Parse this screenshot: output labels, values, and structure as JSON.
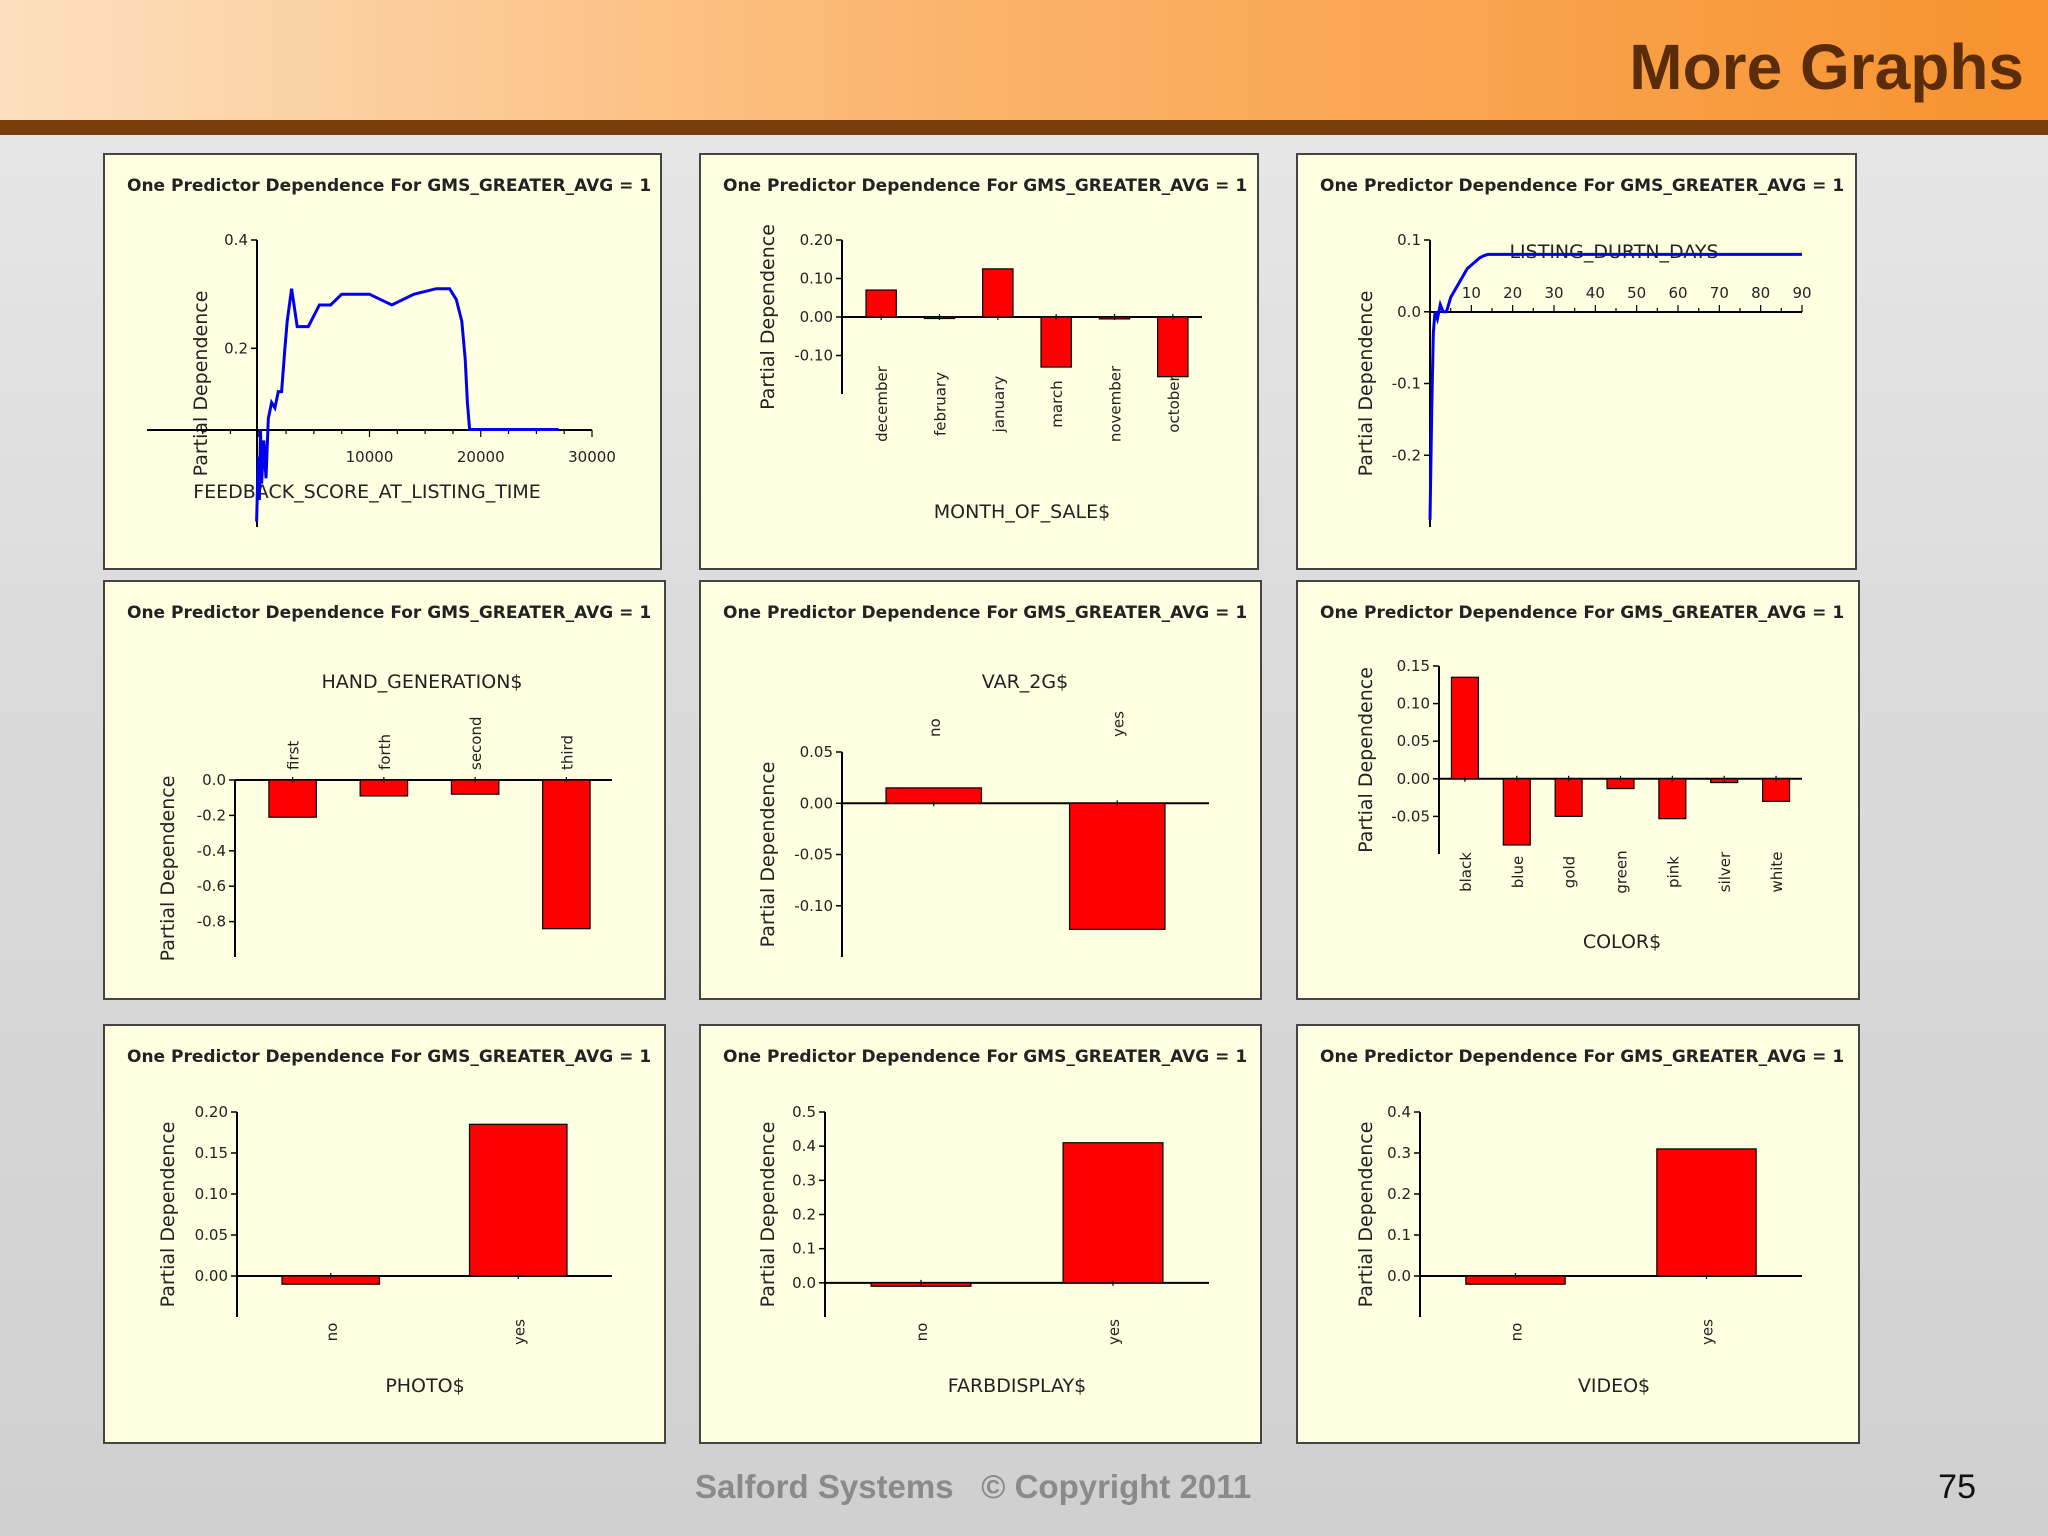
{
  "slide": {
    "title": "More Graphs",
    "footer": "Salford Systems   © Copyright 2011",
    "page_number": "75"
  },
  "colors": {
    "bar": "#ff0000",
    "line": "#0000ee",
    "panel_bg": "#ffffe1",
    "header_dark": "#7a3d0c"
  },
  "chart_data": [
    {
      "type": "line",
      "title": "One Predictor Dependence For GMS_GREATER_AVG = 1",
      "xlabel": "FEEDBACK_SCORE_AT_LISTING_TIME",
      "ylabel": "Partial Dependence",
      "xticks": [
        10000,
        20000,
        30000
      ],
      "xtick_labels": [
        "10000",
        "20000",
        "30000"
      ],
      "yticks": [
        0.2,
        0.4
      ],
      "ytick_labels": [
        "0.2",
        "0.4"
      ],
      "xlim": [
        -10000,
        30000
      ],
      "ylim": [
        -0.13,
        0.4
      ],
      "x": [
        -150,
        0,
        100,
        200,
        300,
        500,
        700,
        900,
        1200,
        1500,
        1800,
        2100,
        2400,
        2600,
        2800,
        3000,
        3500,
        4500,
        5500,
        6500,
        7500,
        8500,
        10000,
        12000,
        14000,
        16000,
        17200,
        17800,
        18300,
        18600,
        18800,
        19000,
        19200,
        27000
      ],
      "y": [
        -0.12,
        0.0,
        -0.08,
        0.05,
        -0.05,
        0.03,
        -0.04,
        0.07,
        0.1,
        0.09,
        0.12,
        0.12,
        0.2,
        0.25,
        0.28,
        0.31,
        0.24,
        0.24,
        0.28,
        0.28,
        0.3,
        0.3,
        0.3,
        0.28,
        0.3,
        0.31,
        0.31,
        0.29,
        0.25,
        0.18,
        0.1,
        0.05,
        0.05,
        0.05
      ]
    },
    {
      "type": "bar",
      "title": "One Predictor Dependence For GMS_GREATER_AVG = 1",
      "xlabel": "MONTH_OF_SALE$",
      "ylabel": "Partial Dependence",
      "categories": [
        "december",
        "february",
        "january",
        "march",
        "november",
        "october"
      ],
      "values": [
        0.07,
        0.0,
        0.125,
        -0.13,
        -0.005,
        -0.155
      ],
      "yticks": [
        -0.1,
        0.0,
        0.1,
        0.2
      ],
      "ytick_labels": [
        "-0.10",
        "0.00",
        "0.10",
        "0.20"
      ],
      "ylim": [
        -0.2,
        0.2
      ],
      "xtick_position": "bottom"
    },
    {
      "type": "line",
      "title": "One Predictor Dependence For GMS_GREATER_AVG = 1",
      "xlabel": "LISTING_DURTN_DAYS",
      "ylabel": "Partial Dependence",
      "xticks": [
        10,
        20,
        30,
        40,
        50,
        60,
        70,
        80,
        90
      ],
      "xtick_labels": [
        "10",
        "20",
        "30",
        "40",
        "50",
        "60",
        "70",
        "80",
        "90"
      ],
      "yticks": [
        -0.2,
        -0.1,
        0.0,
        0.1
      ],
      "ytick_labels": [
        "-0.2",
        "-0.1",
        "0.0",
        "0.1"
      ],
      "xlim": [
        0,
        90
      ],
      "ylim": [
        -0.3,
        0.1
      ],
      "x": [
        0,
        0.4,
        0.8,
        1.2,
        1.8,
        2.5,
        3.2,
        4,
        5,
        6,
        7,
        8,
        9,
        10,
        11,
        12,
        13,
        14,
        15,
        90
      ],
      "y": [
        -0.29,
        -0.14,
        -0.03,
        0.0,
        -0.01,
        0.01,
        0.0,
        0.0,
        0.02,
        0.03,
        0.04,
        0.05,
        0.06,
        0.065,
        0.07,
        0.075,
        0.078,
        0.08,
        0.08,
        0.08
      ]
    },
    {
      "type": "bar",
      "title": "One Predictor Dependence For GMS_GREATER_AVG = 1",
      "xlabel": "HAND_GENERATION$",
      "ylabel": "Partial Dependence",
      "categories": [
        "first",
        "forth",
        "second",
        "third"
      ],
      "values": [
        -0.21,
        -0.09,
        -0.08,
        -0.84
      ],
      "yticks": [
        -0.8,
        -0.6,
        -0.4,
        -0.2,
        0.0
      ],
      "ytick_labels": [
        "-0.8",
        "-0.6",
        "-0.4",
        "-0.2",
        "0.0"
      ],
      "ylim": [
        -1.0,
        0.0
      ],
      "xtick_position": "top"
    },
    {
      "type": "bar",
      "title": "One Predictor Dependence For GMS_GREATER_AVG = 1",
      "xlabel": "VAR_2G$",
      "ylabel": "Partial Dependence",
      "categories": [
        "no",
        "yes"
      ],
      "values": [
        0.015,
        -0.123
      ],
      "yticks": [
        -0.1,
        -0.05,
        0.0,
        0.05
      ],
      "ytick_labels": [
        "-0.10",
        "-0.05",
        "0.00",
        "0.05"
      ],
      "ylim": [
        -0.15,
        0.05
      ],
      "xtick_position": "top"
    },
    {
      "type": "bar",
      "title": "One Predictor Dependence For GMS_GREATER_AVG = 1",
      "xlabel": "COLOR$",
      "ylabel": "Partial Dependence",
      "categories": [
        "black",
        "blue",
        "gold",
        "green",
        "pink",
        "silver",
        "white"
      ],
      "values": [
        0.135,
        -0.088,
        -0.05,
        -0.013,
        -0.053,
        -0.005,
        -0.03
      ],
      "yticks": [
        -0.05,
        0.0,
        0.05,
        0.1,
        0.15
      ],
      "ytick_labels": [
        "-0.05",
        "0.00",
        "0.05",
        "0.10",
        "0.15"
      ],
      "ylim": [
        -0.1,
        0.15
      ],
      "xtick_position": "bottom"
    },
    {
      "type": "bar",
      "title": "One Predictor Dependence For GMS_GREATER_AVG = 1",
      "xlabel": "PHOTO$",
      "ylabel": "Partial Dependence",
      "categories": [
        "no",
        "yes"
      ],
      "values": [
        -0.01,
        0.185
      ],
      "yticks": [
        0.0,
        0.05,
        0.1,
        0.15,
        0.2
      ],
      "ytick_labels": [
        "0.00",
        "0.05",
        "0.10",
        "0.15",
        "0.20"
      ],
      "ylim": [
        -0.05,
        0.2
      ],
      "xtick_position": "bottom"
    },
    {
      "type": "bar",
      "title": "One Predictor Dependence For GMS_GREATER_AVG = 1",
      "xlabel": "FARBDISPLAY$",
      "ylabel": "Partial Dependence",
      "categories": [
        "no",
        "yes"
      ],
      "values": [
        -0.01,
        0.41
      ],
      "yticks": [
        0.0,
        0.1,
        0.2,
        0.3,
        0.4,
        0.5
      ],
      "ytick_labels": [
        "0.0",
        "0.1",
        "0.2",
        "0.3",
        "0.4",
        "0.5"
      ],
      "ylim": [
        -0.1,
        0.5
      ],
      "xtick_position": "bottom"
    },
    {
      "type": "bar",
      "title": "One Predictor Dependence For GMS_GREATER_AVG = 1",
      "xlabel": "VIDEO$",
      "ylabel": "Partial Dependence",
      "categories": [
        "no",
        "yes"
      ],
      "values": [
        -0.02,
        0.31
      ],
      "yticks": [
        0.0,
        0.1,
        0.2,
        0.3,
        0.4
      ],
      "ytick_labels": [
        "0.0",
        "0.1",
        "0.2",
        "0.3",
        "0.4"
      ],
      "ylim": [
        -0.1,
        0.4
      ],
      "xtick_position": "bottom"
    }
  ]
}
